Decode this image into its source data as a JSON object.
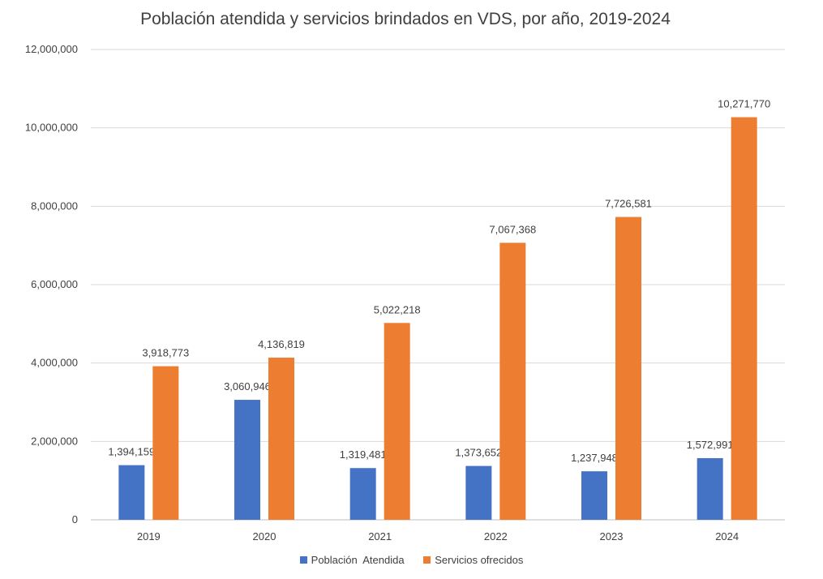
{
  "chart_data": {
    "type": "bar",
    "title": "Población atendida y servicios brindados en VDS, por año, 2019-2024",
    "categories": [
      "2019",
      "2020",
      "2021",
      "2022",
      "2023",
      "2024"
    ],
    "series": [
      {
        "name": "Población  Atendida",
        "color": "#4472C4",
        "values": [
          1394159,
          3060946,
          1319481,
          1373652,
          1237948,
          1572991
        ],
        "labels": [
          "1,394,159",
          "3,060,946",
          "1,319,481",
          "1,373,652",
          "1,237,948",
          "1,572,991"
        ]
      },
      {
        "name": "Servicios ofrecidos",
        "color": "#ED7D31",
        "values": [
          3918773,
          4136819,
          5022218,
          7067368,
          7726581,
          10271770
        ],
        "labels": [
          "3,918,773",
          "4,136,819",
          "5,022,218",
          "7,067,368",
          "7,726,581",
          "10,271,770"
        ]
      }
    ],
    "ylim": [
      0,
      12000000
    ],
    "yticks": [
      0,
      2000000,
      4000000,
      6000000,
      8000000,
      10000000,
      12000000
    ],
    "ytick_labels": [
      "0",
      "2,000,000",
      "4,000,000",
      "6,000,000",
      "8,000,000",
      "10,000,000",
      "12,000,000"
    ],
    "grid": true,
    "legend_position": "bottom",
    "gridline_color": "#D9D9D9"
  }
}
